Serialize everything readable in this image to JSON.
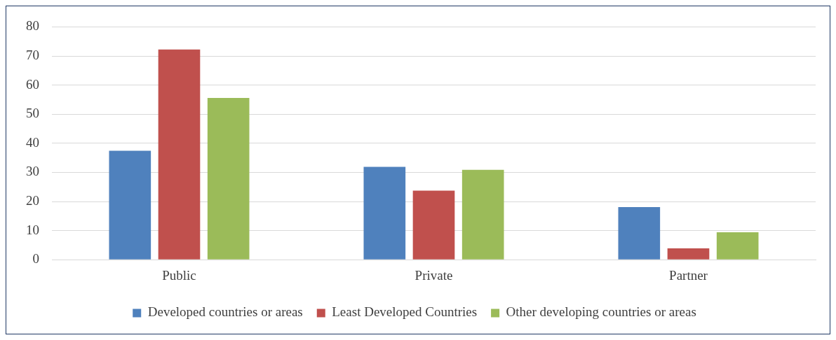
{
  "chart_data": {
    "type": "bar",
    "categories": [
      "Public",
      "Private",
      "Partner"
    ],
    "series": [
      {
        "name": "Developed countries or areas",
        "color": "#4f81bd",
        "values": [
          37.4,
          31.9,
          18.1
        ]
      },
      {
        "name": "Least Developed Countries",
        "color": "#c0504d",
        "values": [
          72.2,
          23.7,
          3.9
        ]
      },
      {
        "name": "Other developing countries or areas",
        "color": "#9bbb59",
        "values": [
          55.6,
          30.9,
          9.4
        ]
      }
    ],
    "ylim": [
      0,
      80
    ],
    "yticks": [
      0,
      10,
      20,
      30,
      40,
      50,
      60,
      70,
      80
    ],
    "grid": "y",
    "legend": "bottom"
  }
}
